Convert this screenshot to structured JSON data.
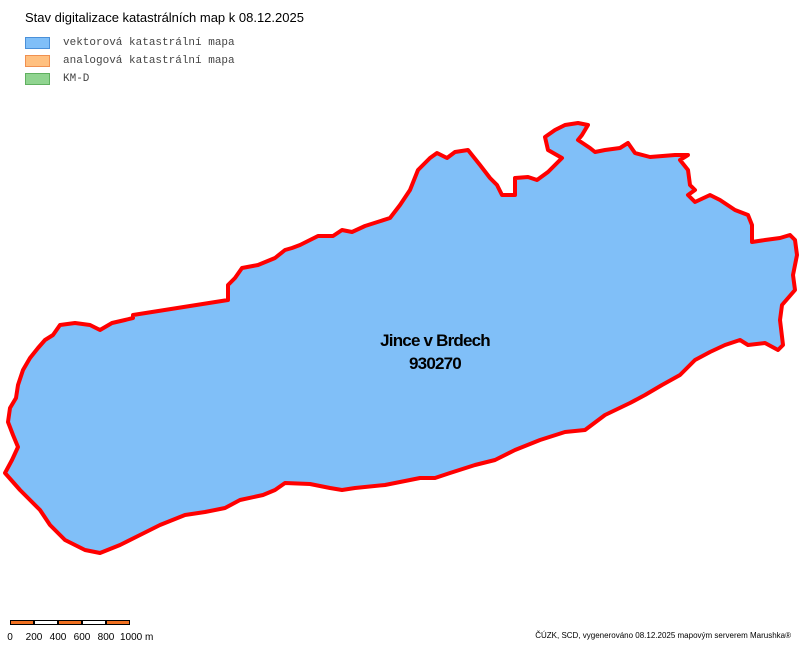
{
  "title": "Stav digitalizace katastrálních map k 08.12.2025",
  "legend": [
    {
      "label": "vektorová katastrální mapa",
      "fill": "#80bff8",
      "stroke": "#4a90d9"
    },
    {
      "label": "analogová katastrální mapa",
      "fill": "#ffc080",
      "stroke": "#f09050"
    },
    {
      "label": "KM-D",
      "fill": "#90d490",
      "stroke": "#60b060"
    }
  ],
  "map": {
    "area_name": "Jince v Brdech",
    "area_code": "930270",
    "fill": "#80bff8",
    "boundary_color": "#ff0000"
  },
  "scale_bar": {
    "ticks": [
      "0",
      "200",
      "400",
      "600",
      "800",
      "1000 m"
    ],
    "colors": [
      "#f07020",
      "#ffffff"
    ]
  },
  "credit": "ČÚZK, SCD, vygenerováno 08.12.2025 mapovým serverem Marushka®"
}
